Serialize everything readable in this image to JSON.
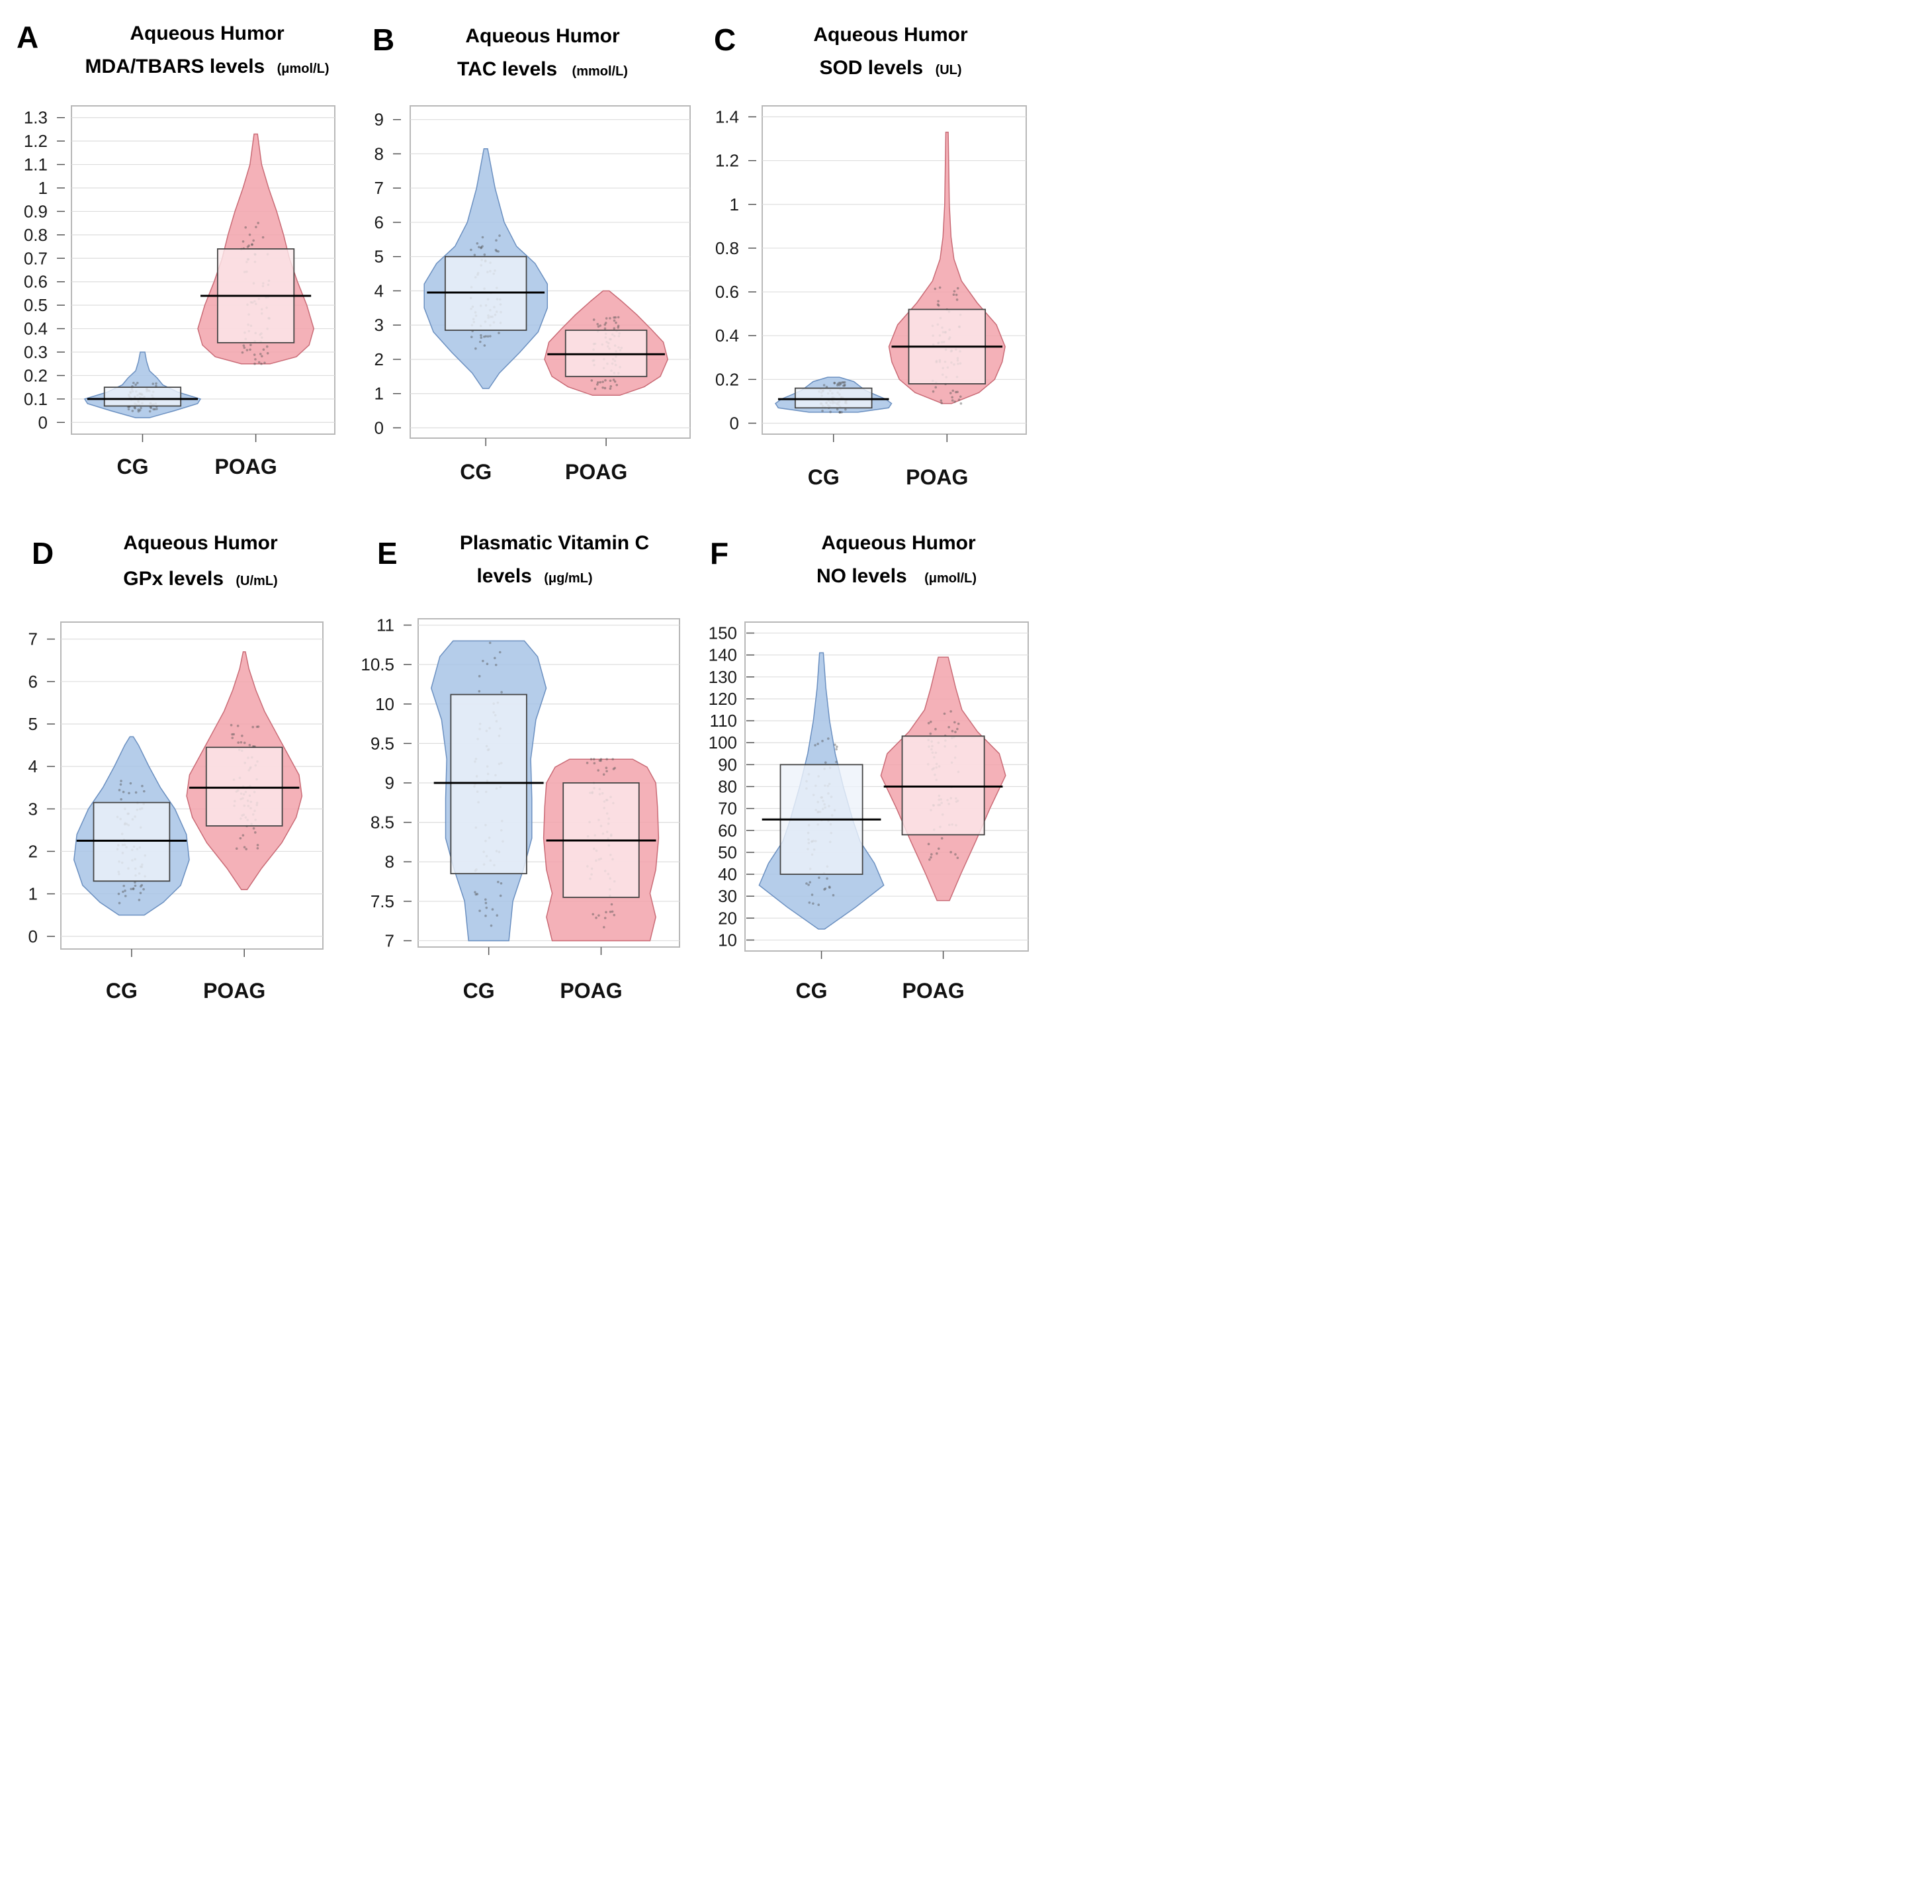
{
  "colors": {
    "cg_fill": "#a8c4e6",
    "cg_edge": "#6a8fc0",
    "poag_fill": "#f2a3ab",
    "poag_edge": "#c96a75",
    "cg_box_fill": "#eef3fa",
    "poag_box_fill": "#fdeaec",
    "median_line": "#000000",
    "grid": "#dddddd",
    "frame": "#b8b8b8"
  },
  "chart_data": [
    {
      "panel": "A",
      "type": "violin",
      "title": [
        "Aqueous Humor",
        "MDA/TBARS levels"
      ],
      "unit": "(μmol/L)",
      "categories": [
        "CG",
        "POAG"
      ],
      "ylim": [
        -0.05,
        1.35
      ],
      "yticks": [
        "1.3",
        "1.2",
        "1.1",
        "1",
        "0.9",
        "0.8",
        "0.7",
        "0.6",
        "0.5",
        "0.4",
        "0.3",
        "0.2",
        "0.1",
        "0"
      ],
      "grid": true,
      "series": [
        {
          "min": 0.02,
          "max": 0.3,
          "q1": 0.07,
          "median": 0.1,
          "q3": 0.15,
          "density": [
            [
              0.02,
              0.12
            ],
            [
              0.05,
              0.55
            ],
            [
              0.08,
              0.95
            ],
            [
              0.1,
              1.0
            ],
            [
              0.13,
              0.6
            ],
            [
              0.16,
              0.35
            ],
            [
              0.19,
              0.25
            ],
            [
              0.22,
              0.12
            ],
            [
              0.26,
              0.07
            ],
            [
              0.3,
              0.04
            ]
          ]
        },
        {
          "min": 0.25,
          "max": 1.23,
          "q1": 0.34,
          "median": 0.54,
          "q3": 0.74,
          "density": [
            [
              0.25,
              0.25
            ],
            [
              0.28,
              0.7
            ],
            [
              0.33,
              0.92
            ],
            [
              0.4,
              1.0
            ],
            [
              0.5,
              0.88
            ],
            [
              0.6,
              0.72
            ],
            [
              0.7,
              0.58
            ],
            [
              0.8,
              0.48
            ],
            [
              0.9,
              0.36
            ],
            [
              1.0,
              0.22
            ],
            [
              1.1,
              0.1
            ],
            [
              1.23,
              0.03
            ]
          ]
        }
      ]
    },
    {
      "panel": "B",
      "type": "violin",
      "title": [
        "Aqueous Humor",
        "TAC levels"
      ],
      "unit": "(mmol/L)",
      "categories": [
        "CG",
        "POAG"
      ],
      "ylim": [
        -0.3,
        9.4
      ],
      "yticks": [
        "9",
        "8",
        "7",
        "6",
        "5",
        "4",
        "3",
        "2",
        "1",
        "0"
      ],
      "grid": true,
      "series": [
        {
          "min": 1.15,
          "max": 8.15,
          "q1": 2.85,
          "median": 3.95,
          "q3": 5.0,
          "density": [
            [
              1.15,
              0.05
            ],
            [
              1.6,
              0.22
            ],
            [
              2.2,
              0.55
            ],
            [
              2.8,
              0.85
            ],
            [
              3.5,
              1.0
            ],
            [
              4.2,
              1.0
            ],
            [
              4.8,
              0.8
            ],
            [
              5.3,
              0.5
            ],
            [
              6.0,
              0.3
            ],
            [
              7.0,
              0.15
            ],
            [
              8.15,
              0.03
            ]
          ]
        },
        {
          "min": 0.95,
          "max": 4.0,
          "q1": 1.5,
          "median": 2.15,
          "q3": 2.85,
          "density": [
            [
              0.95,
              0.22
            ],
            [
              1.2,
              0.62
            ],
            [
              1.5,
              0.88
            ],
            [
              2.0,
              1.0
            ],
            [
              2.5,
              0.93
            ],
            [
              2.9,
              0.72
            ],
            [
              3.3,
              0.5
            ],
            [
              3.7,
              0.25
            ],
            [
              4.0,
              0.05
            ]
          ]
        }
      ]
    },
    {
      "panel": "C",
      "type": "violin",
      "title": [
        "Aqueous Humor",
        "SOD levels"
      ],
      "unit": "(UL)",
      "categories": [
        "CG",
        "POAG"
      ],
      "ylim": [
        -0.05,
        1.45
      ],
      "yticks": [
        "1.4",
        "1.2",
        "1",
        "0.8",
        "0.6",
        "0.4",
        "0.2",
        "0"
      ],
      "grid": true,
      "series": [
        {
          "min": 0.05,
          "max": 0.21,
          "q1": 0.07,
          "median": 0.11,
          "q3": 0.16,
          "density": [
            [
              0.05,
              0.42
            ],
            [
              0.07,
              0.95
            ],
            [
              0.09,
              1.0
            ],
            [
              0.11,
              0.9
            ],
            [
              0.13,
              0.72
            ],
            [
              0.15,
              0.55
            ],
            [
              0.17,
              0.45
            ],
            [
              0.19,
              0.35
            ],
            [
              0.21,
              0.1
            ]
          ]
        },
        {
          "min": 0.09,
          "max": 1.33,
          "q1": 0.18,
          "median": 0.35,
          "q3": 0.52,
          "density": [
            [
              0.09,
              0.08
            ],
            [
              0.14,
              0.55
            ],
            [
              0.2,
              0.82
            ],
            [
              0.28,
              0.95
            ],
            [
              0.35,
              1.0
            ],
            [
              0.45,
              0.85
            ],
            [
              0.55,
              0.52
            ],
            [
              0.65,
              0.25
            ],
            [
              0.75,
              0.12
            ],
            [
              0.85,
              0.07
            ],
            [
              1.0,
              0.04
            ],
            [
              1.33,
              0.02
            ]
          ]
        }
      ]
    },
    {
      "panel": "D",
      "type": "violin",
      "title": [
        "Aqueous Humor",
        "GPx levels"
      ],
      "unit": "(U/mL)",
      "categories": [
        "CG",
        "POAG"
      ],
      "ylim": [
        -0.3,
        7.4
      ],
      "yticks": [
        "7",
        "6",
        "5",
        "4",
        "3",
        "2",
        "1",
        "0"
      ],
      "grid": true,
      "series": [
        {
          "min": 0.5,
          "max": 4.7,
          "q1": 1.3,
          "median": 2.25,
          "q3": 3.15,
          "density": [
            [
              0.5,
              0.22
            ],
            [
              0.8,
              0.55
            ],
            [
              1.2,
              0.85
            ],
            [
              1.8,
              1.0
            ],
            [
              2.4,
              0.95
            ],
            [
              3.0,
              0.75
            ],
            [
              3.5,
              0.5
            ],
            [
              4.0,
              0.3
            ],
            [
              4.5,
              0.12
            ],
            [
              4.7,
              0.03
            ]
          ]
        },
        {
          "min": 1.1,
          "max": 6.7,
          "q1": 2.6,
          "median": 3.5,
          "q3": 4.45,
          "density": [
            [
              1.1,
              0.05
            ],
            [
              1.6,
              0.3
            ],
            [
              2.2,
              0.65
            ],
            [
              2.8,
              0.9
            ],
            [
              3.3,
              1.0
            ],
            [
              3.8,
              0.95
            ],
            [
              4.3,
              0.75
            ],
            [
              4.8,
              0.55
            ],
            [
              5.3,
              0.35
            ],
            [
              5.8,
              0.2
            ],
            [
              6.3,
              0.08
            ],
            [
              6.7,
              0.02
            ]
          ]
        }
      ]
    },
    {
      "panel": "E",
      "type": "violin",
      "title": [
        "Plasmatic Vitamin C",
        "levels"
      ],
      "unit": "(μg/mL)",
      "categories": [
        "CG",
        "POAG"
      ],
      "ylim": [
        6.92,
        11.08
      ],
      "yticks": [
        "11",
        "10.5",
        "10",
        "9.5",
        "9",
        "8.5",
        "8",
        "7.5",
        "7"
      ],
      "grid": true,
      "series": [
        {
          "min": 7.0,
          "max": 10.8,
          "q1": 7.85,
          "median": 9.0,
          "q3": 10.12,
          "density": [
            [
              7.0,
              0.35
            ],
            [
              7.5,
              0.42
            ],
            [
              7.9,
              0.6
            ],
            [
              8.3,
              0.75
            ],
            [
              8.8,
              0.75
            ],
            [
              9.3,
              0.73
            ],
            [
              9.8,
              0.82
            ],
            [
              10.2,
              1.0
            ],
            [
              10.6,
              0.85
            ],
            [
              10.8,
              0.62
            ]
          ]
        },
        {
          "min": 7.0,
          "max": 9.3,
          "q1": 7.55,
          "median": 8.27,
          "q3": 9.0,
          "density": [
            [
              7.0,
              0.85
            ],
            [
              7.3,
              0.95
            ],
            [
              7.6,
              0.85
            ],
            [
              7.9,
              0.95
            ],
            [
              8.3,
              1.0
            ],
            [
              8.7,
              0.98
            ],
            [
              9.0,
              0.95
            ],
            [
              9.2,
              0.8
            ],
            [
              9.3,
              0.55
            ]
          ]
        }
      ]
    },
    {
      "panel": "F",
      "type": "violin",
      "title": [
        "Aqueous Humor",
        "NO levels"
      ],
      "unit": "(μmol/L)",
      "categories": [
        "CG",
        "POAG"
      ],
      "ylim": [
        5,
        155
      ],
      "yticks": [
        "150",
        "140",
        "130",
        "120",
        "110",
        "100",
        "90",
        "80",
        "70",
        "60",
        "50",
        "40",
        "30",
        "20",
        "10"
      ],
      "grid": true,
      "series": [
        {
          "min": 15,
          "max": 141,
          "q1": 40,
          "median": 65,
          "q3": 90,
          "density": [
            [
              15,
              0.05
            ],
            [
              25,
              0.55
            ],
            [
              35,
              1.0
            ],
            [
              45,
              0.85
            ],
            [
              55,
              0.62
            ],
            [
              65,
              0.5
            ],
            [
              80,
              0.35
            ],
            [
              95,
              0.22
            ],
            [
              110,
              0.13
            ],
            [
              125,
              0.07
            ],
            [
              141,
              0.03
            ]
          ]
        },
        {
          "min": 28,
          "max": 139,
          "q1": 58,
          "median": 80,
          "q3": 103,
          "density": [
            [
              28,
              0.1
            ],
            [
              40,
              0.28
            ],
            [
              55,
              0.52
            ],
            [
              70,
              0.75
            ],
            [
              85,
              1.0
            ],
            [
              95,
              0.9
            ],
            [
              105,
              0.55
            ],
            [
              115,
              0.3
            ],
            [
              125,
              0.2
            ],
            [
              139,
              0.08
            ]
          ]
        }
      ]
    }
  ]
}
